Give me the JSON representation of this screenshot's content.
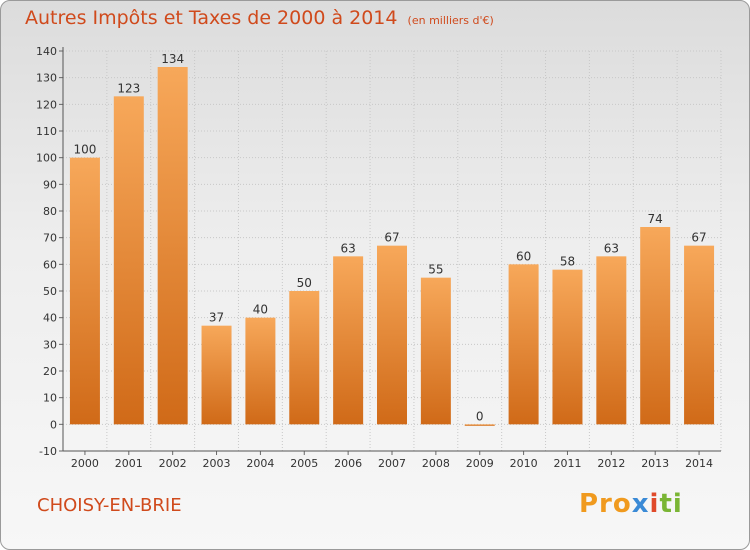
{
  "chart_data": {
    "type": "bar",
    "title": "Autres Impôts et Taxes de 2000 à 2014",
    "subtitle": "(en milliers d'€)",
    "categories": [
      "2000",
      "2001",
      "2002",
      "2003",
      "2004",
      "2005",
      "2006",
      "2007",
      "2008",
      "2009",
      "2010",
      "2011",
      "2012",
      "2013",
      "2014"
    ],
    "values": [
      100,
      123,
      134,
      37,
      40,
      50,
      63,
      67,
      55,
      0,
      60,
      58,
      63,
      74,
      67
    ],
    "ylim": [
      -10,
      140
    ],
    "yticks": [
      -10,
      0,
      10,
      20,
      30,
      40,
      50,
      60,
      70,
      80,
      90,
      100,
      110,
      120,
      130,
      140
    ],
    "xlabel": "",
    "ylabel": "",
    "grid": true,
    "bar_color": "#f0912f"
  },
  "footer": {
    "city": "CHOISY-EN-BRIE",
    "logo": {
      "p1": "Pro",
      "p2": "x",
      "p3": "i",
      "p4": "ti"
    }
  }
}
